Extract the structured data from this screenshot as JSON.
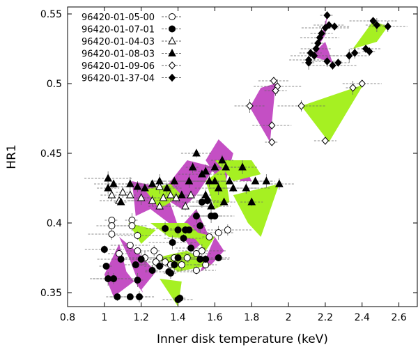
{
  "chart_data": {
    "type": "scatter",
    "title": "",
    "xlabel": "Inner disk temperature (keV)",
    "ylabel": "HR1",
    "xlim": [
      0.8,
      2.7
    ],
    "ylim": [
      0.34,
      0.555
    ],
    "xticks": [
      "0.8",
      "1",
      "1.2",
      "1.4",
      "1.6",
      "1.8",
      "2",
      "2.2",
      "2.4",
      "2.6"
    ],
    "xtick_values": [
      0.8,
      1.0,
      1.2,
      1.4,
      1.6,
      1.8,
      2.0,
      2.2,
      2.4,
      2.6
    ],
    "yticks": [
      "0.35",
      "0.4",
      "0.45",
      "0.5",
      "0.55"
    ],
    "ytick_values": [
      0.35,
      0.4,
      0.45,
      0.5,
      0.55
    ],
    "grid": false,
    "legend_position": "top-left",
    "colors": {
      "magenta": "#c44fc4",
      "green": "#a6f022",
      "errorbar": "#666666",
      "marker": "#000000"
    },
    "series": [
      {
        "name": "96420-01-05-00",
        "marker": "open-circle",
        "points": [
          [
            1.04,
            0.402
          ],
          [
            1.04,
            0.398
          ],
          [
            1.04,
            0.392
          ],
          [
            1.08,
            0.378
          ],
          [
            1.14,
            0.384
          ],
          [
            1.15,
            0.402
          ],
          [
            1.15,
            0.398
          ],
          [
            1.18,
            0.391
          ],
          [
            1.18,
            0.38
          ],
          [
            1.22,
            0.375
          ],
          [
            1.27,
            0.38
          ],
          [
            1.3,
            0.375
          ],
          [
            1.33,
            0.372
          ],
          [
            1.36,
            0.37
          ],
          [
            1.42,
            0.37
          ],
          [
            1.45,
            0.375
          ],
          [
            1.5,
            0.378
          ],
          [
            1.53,
            0.38
          ],
          [
            1.55,
            0.37
          ],
          [
            1.5,
            0.366
          ],
          [
            1.57,
            0.39
          ],
          [
            1.62,
            0.393
          ],
          [
            1.67,
            0.395
          ],
          [
            1.28,
            0.372
          ],
          [
            1.38,
            0.375
          ]
        ]
      },
      {
        "name": "96420-01-07-01",
        "marker": "filled-circle",
        "points": [
          [
            1.0,
            0.381
          ],
          [
            1.01,
            0.369
          ],
          [
            1.02,
            0.36
          ],
          [
            1.05,
            0.36
          ],
          [
            1.07,
            0.347
          ],
          [
            1.14,
            0.347
          ],
          [
            1.18,
            0.359
          ],
          [
            1.19,
            0.347
          ],
          [
            1.09,
            0.374
          ],
          [
            1.17,
            0.37
          ],
          [
            1.2,
            0.374
          ],
          [
            1.26,
            0.366
          ],
          [
            1.3,
            0.369
          ],
          [
            1.35,
            0.365
          ],
          [
            1.38,
            0.37
          ],
          [
            1.4,
            0.375
          ],
          [
            1.41,
            0.346
          ],
          [
            1.4,
            0.345
          ],
          [
            1.37,
            0.386
          ],
          [
            1.4,
            0.395
          ],
          [
            1.43,
            0.389
          ],
          [
            1.46,
            0.395
          ],
          [
            1.5,
            0.405
          ],
          [
            1.53,
            0.415
          ],
          [
            1.56,
            0.416
          ],
          [
            1.6,
            0.405
          ],
          [
            1.52,
            0.398
          ],
          [
            1.47,
            0.382
          ],
          [
            1.55,
            0.374
          ],
          [
            1.62,
            0.375
          ],
          [
            1.33,
            0.396
          ],
          [
            1.36,
            0.364
          ],
          [
            1.44,
            0.395
          ],
          [
            1.52,
            0.374
          ],
          [
            1.58,
            0.405
          ]
        ]
      },
      {
        "name": "96420-01-04-03",
        "marker": "open-triangle",
        "points": [
          [
            1.04,
            0.42
          ],
          [
            1.08,
            0.416
          ],
          [
            1.14,
            0.42
          ],
          [
            1.2,
            0.418
          ],
          [
            1.26,
            0.416
          ],
          [
            1.3,
            0.412
          ],
          [
            1.32,
            0.418
          ],
          [
            1.36,
            0.42
          ],
          [
            1.39,
            0.418
          ],
          [
            1.44,
            0.412
          ],
          [
            1.47,
            0.42
          ],
          [
            1.3,
            0.426
          ],
          [
            1.1,
            0.422
          ]
        ]
      },
      {
        "name": "96420-01-08-03",
        "marker": "filled-triangle",
        "points": [
          [
            1.02,
            0.432
          ],
          [
            1.02,
            0.425
          ],
          [
            1.05,
            0.428
          ],
          [
            1.09,
            0.415
          ],
          [
            1.14,
            0.428
          ],
          [
            1.18,
            0.426
          ],
          [
            1.22,
            0.425
          ],
          [
            1.26,
            0.428
          ],
          [
            1.3,
            0.43
          ],
          [
            1.34,
            0.425
          ],
          [
            1.38,
            0.43
          ],
          [
            1.42,
            0.42
          ],
          [
            1.46,
            0.43
          ],
          [
            1.48,
            0.44
          ],
          [
            1.5,
            0.45
          ],
          [
            1.53,
            0.435
          ],
          [
            1.55,
            0.437
          ],
          [
            1.57,
            0.43
          ],
          [
            1.6,
            0.44
          ],
          [
            1.6,
            0.43
          ],
          [
            1.62,
            0.425
          ],
          [
            1.64,
            0.445
          ],
          [
            1.66,
            0.44
          ],
          [
            1.68,
            0.43
          ],
          [
            1.75,
            0.44
          ],
          [
            1.77,
            0.425
          ],
          [
            1.8,
            0.415
          ],
          [
            1.82,
            0.43
          ],
          [
            1.88,
            0.43
          ],
          [
            1.95,
            0.428
          ],
          [
            1.7,
            0.425
          ],
          [
            1.65,
            0.415
          ],
          [
            1.58,
            0.412
          ],
          [
            1.55,
            0.42
          ]
        ]
      },
      {
        "name": "96420-01-09-06",
        "marker": "open-diamond",
        "points": [
          [
            1.92,
            0.502
          ],
          [
            1.94,
            0.498
          ],
          [
            1.93,
            0.495
          ],
          [
            1.91,
            0.47
          ],
          [
            1.91,
            0.458
          ],
          [
            1.79,
            0.484
          ],
          [
            2.07,
            0.484
          ],
          [
            2.2,
            0.459
          ],
          [
            2.4,
            0.5
          ],
          [
            2.35,
            0.497
          ]
        ]
      },
      {
        "name": "96420-01-37-04",
        "marker": "filled-diamond",
        "points": [
          [
            2.21,
            0.549
          ],
          [
            2.22,
            0.542
          ],
          [
            2.2,
            0.54
          ],
          [
            2.18,
            0.536
          ],
          [
            2.17,
            0.533
          ],
          [
            2.16,
            0.529
          ],
          [
            2.15,
            0.525
          ],
          [
            2.14,
            0.52
          ],
          [
            2.12,
            0.522
          ],
          [
            2.11,
            0.517
          ],
          [
            2.11,
            0.515
          ],
          [
            2.21,
            0.516
          ],
          [
            2.24,
            0.513
          ],
          [
            2.27,
            0.515
          ],
          [
            2.33,
            0.52
          ],
          [
            2.36,
            0.522
          ],
          [
            2.42,
            0.525
          ],
          [
            2.46,
            0.545
          ],
          [
            2.48,
            0.542
          ],
          [
            2.54,
            0.541
          ],
          [
            2.44,
            0.523
          ],
          [
            2.25,
            0.541
          ]
        ]
      }
    ],
    "regions": [
      {
        "color": "magenta",
        "polygon": [
          [
            1.0,
            0.363
          ],
          [
            1.08,
            0.385
          ],
          [
            1.12,
            0.365
          ],
          [
            1.21,
            0.35
          ],
          [
            1.18,
            0.36
          ],
          [
            1.05,
            0.347
          ]
        ]
      },
      {
        "color": "magenta",
        "polygon": [
          [
            1.08,
            0.39
          ],
          [
            1.18,
            0.379
          ],
          [
            1.28,
            0.365
          ],
          [
            1.2,
            0.352
          ],
          [
            1.14,
            0.373
          ]
        ]
      },
      {
        "color": "magenta",
        "polygon": [
          [
            1.15,
            0.43
          ],
          [
            1.33,
            0.425
          ],
          [
            1.42,
            0.39
          ],
          [
            1.35,
            0.4
          ],
          [
            1.25,
            0.41
          ],
          [
            1.17,
            0.405
          ]
        ]
      },
      {
        "color": "magenta",
        "polygon": [
          [
            1.3,
            0.42
          ],
          [
            1.45,
            0.445
          ],
          [
            1.6,
            0.44
          ],
          [
            1.5,
            0.42
          ],
          [
            1.42,
            0.41
          ]
        ]
      },
      {
        "color": "magenta",
        "polygon": [
          [
            1.55,
            0.445
          ],
          [
            1.62,
            0.46
          ],
          [
            1.7,
            0.45
          ],
          [
            1.66,
            0.43
          ],
          [
            1.6,
            0.435
          ]
        ]
      },
      {
        "color": "magenta",
        "polygon": [
          [
            1.4,
            0.395
          ],
          [
            1.5,
            0.41
          ],
          [
            1.57,
            0.39
          ],
          [
            1.48,
            0.38
          ]
        ]
      },
      {
        "color": "magenta",
        "polygon": [
          [
            1.52,
            0.365
          ],
          [
            1.6,
            0.39
          ],
          [
            1.65,
            0.38
          ],
          [
            1.58,
            0.37
          ]
        ]
      },
      {
        "color": "magenta",
        "polygon": [
          [
            1.79,
            0.483
          ],
          [
            1.85,
            0.497
          ],
          [
            1.93,
            0.5
          ],
          [
            1.9,
            0.458
          ]
        ]
      },
      {
        "color": "magenta",
        "polygon": [
          [
            1.7,
            0.44
          ],
          [
            1.75,
            0.445
          ],
          [
            1.8,
            0.43
          ],
          [
            1.74,
            0.43
          ]
        ]
      },
      {
        "color": "magenta",
        "polygon": [
          [
            2.15,
            0.524
          ],
          [
            2.18,
            0.534
          ],
          [
            2.21,
            0.549
          ],
          [
            2.2,
            0.535
          ]
        ]
      },
      {
        "color": "magenta",
        "polygon": [
          [
            2.12,
            0.52
          ],
          [
            2.2,
            0.53
          ],
          [
            2.24,
            0.515
          ]
        ]
      },
      {
        "color": "green",
        "polygon": [
          [
            2.07,
            0.484
          ],
          [
            2.38,
            0.498
          ],
          [
            2.41,
            0.5
          ],
          [
            2.22,
            0.458
          ]
        ]
      },
      {
        "color": "green",
        "polygon": [
          [
            2.35,
            0.525
          ],
          [
            2.46,
            0.545
          ],
          [
            2.54,
            0.541
          ],
          [
            2.48,
            0.53
          ]
        ]
      },
      {
        "color": "green",
        "polygon": [
          [
            1.6,
            0.445
          ],
          [
            1.8,
            0.445
          ],
          [
            1.85,
            0.435
          ],
          [
            1.7,
            0.43
          ]
        ]
      },
      {
        "color": "green",
        "polygon": [
          [
            1.7,
            0.42
          ],
          [
            1.95,
            0.428
          ],
          [
            1.85,
            0.39
          ],
          [
            1.78,
            0.4
          ]
        ]
      },
      {
        "color": "green",
        "polygon": [
          [
            1.55,
            0.43
          ],
          [
            1.65,
            0.44
          ],
          [
            1.68,
            0.415
          ],
          [
            1.6,
            0.41
          ]
        ]
      },
      {
        "color": "green",
        "polygon": [
          [
            1.22,
            0.424
          ],
          [
            1.36,
            0.428
          ],
          [
            1.42,
            0.42
          ],
          [
            1.3,
            0.41
          ]
        ]
      },
      {
        "color": "green",
        "polygon": [
          [
            1.25,
            0.4
          ],
          [
            1.45,
            0.4
          ],
          [
            1.55,
            0.388
          ],
          [
            1.35,
            0.39
          ]
        ]
      },
      {
        "color": "green",
        "polygon": [
          [
            1.28,
            0.375
          ],
          [
            1.45,
            0.38
          ],
          [
            1.58,
            0.37
          ],
          [
            1.4,
            0.365
          ]
        ]
      },
      {
        "color": "green",
        "polygon": [
          [
            1.3,
            0.36
          ],
          [
            1.4,
            0.34
          ],
          [
            1.42,
            0.358
          ]
        ]
      },
      {
        "color": "green",
        "polygon": [
          [
            1.45,
            0.395
          ],
          [
            1.6,
            0.39
          ],
          [
            1.55,
            0.38
          ]
        ]
      },
      {
        "color": "green",
        "polygon": [
          [
            1.13,
            0.4
          ],
          [
            1.2,
            0.385
          ],
          [
            1.28,
            0.395
          ]
        ]
      }
    ]
  }
}
